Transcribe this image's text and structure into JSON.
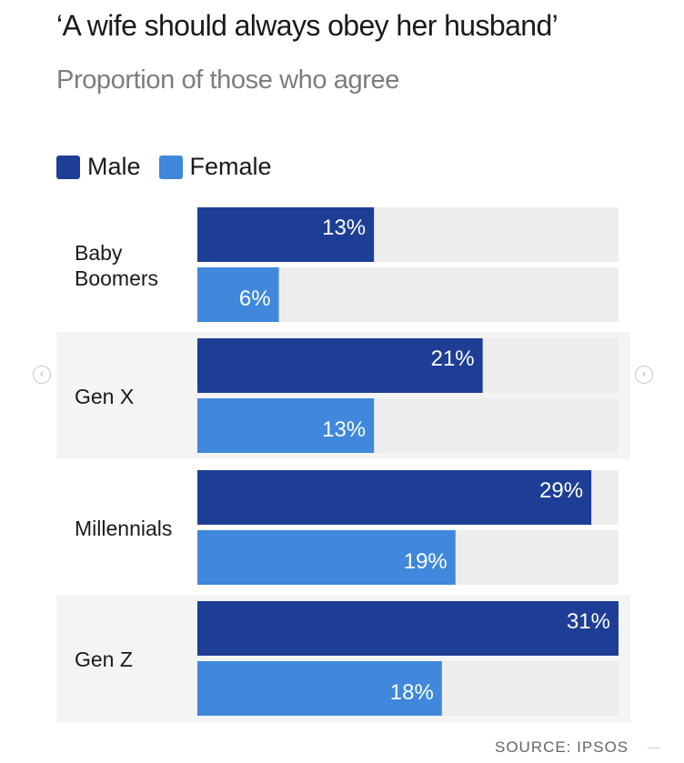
{
  "header": {
    "title": "‘A wife should always obey her husband’",
    "subtitle": "Proportion of those who agree"
  },
  "legend": {
    "items": [
      {
        "label": "Male",
        "color": "#1e3e96"
      },
      {
        "label": "Female",
        "color": "#3f88dc"
      }
    ]
  },
  "nav": {
    "prev_icon": "chevron-left-icon",
    "next_icon": "chevron-right-icon"
  },
  "source": "SOURCE: IPSOS",
  "colors": {
    "male": "#1e3e96",
    "female": "#3f88dc",
    "track": "#ededed",
    "band": "#f4f4f4"
  },
  "chart_data": {
    "type": "bar",
    "orientation": "horizontal",
    "title": "‘A wife should always obey her husband’",
    "subtitle": "Proportion of those who agree",
    "categories": [
      "Baby Boomers",
      "Gen X",
      "Millennials",
      "Gen Z"
    ],
    "series": [
      {
        "name": "Male",
        "values": [
          13,
          21,
          29,
          31
        ]
      },
      {
        "name": "Female",
        "values": [
          6,
          13,
          19,
          18
        ]
      }
    ],
    "value_labels": [
      [
        "13%",
        "21%",
        "29%",
        "31%"
      ],
      [
        "6%",
        "13%",
        "19%",
        "18%"
      ]
    ],
    "xlim": [
      0,
      31
    ],
    "legend": "top-left",
    "grid": false
  }
}
